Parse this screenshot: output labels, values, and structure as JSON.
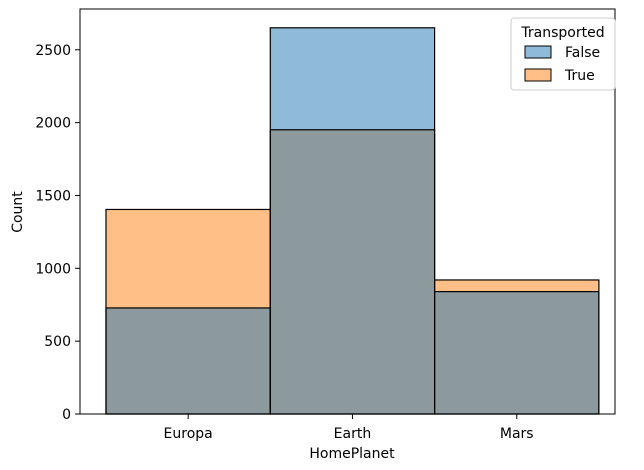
{
  "chart_data": {
    "type": "bar",
    "subtype": "overlapping histogram",
    "categories": [
      "Europa",
      "Earth",
      "Mars"
    ],
    "series": [
      {
        "name": "False",
        "values": [
          728,
          2651,
          840
        ],
        "color": "#1f77b4"
      },
      {
        "name": "True",
        "values": [
          1404,
          1951,
          920
        ],
        "color": "#ff7f0e"
      }
    ],
    "overlap_color": "#8c9a9d",
    "xlabel": "HomePlanet",
    "ylabel": "Count",
    "ylim": [
      0,
      2780
    ],
    "yticks": [
      0,
      500,
      1000,
      1500,
      2000,
      2500
    ],
    "grid": false,
    "legend": {
      "title": "Transported",
      "position": "top-right"
    }
  }
}
